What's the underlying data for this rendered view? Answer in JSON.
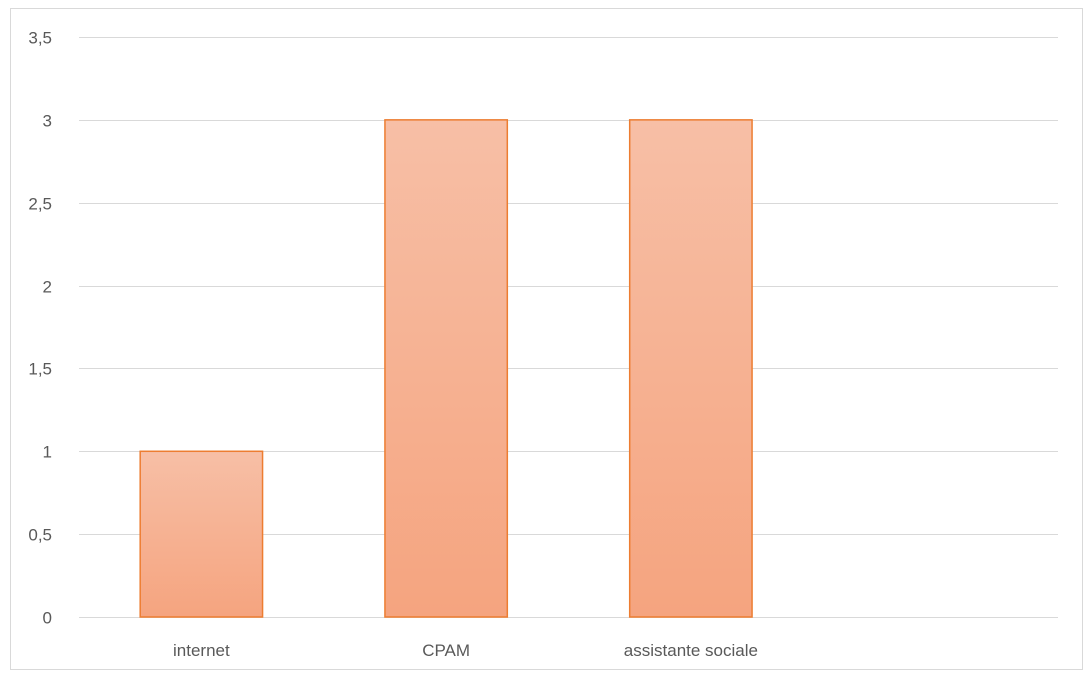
{
  "chart_data": {
    "type": "bar",
    "categories": [
      "internet",
      "CPAM",
      "assistante sociale",
      ""
    ],
    "values": [
      1,
      3,
      3,
      null
    ],
    "ylim": [
      0,
      3.5
    ],
    "yticks": [
      0,
      0.5,
      1,
      1.5,
      2,
      2.5,
      3,
      3.5
    ],
    "ytick_labels": [
      "0",
      "0,5",
      "1",
      "1,5",
      "2",
      "2,5",
      "3",
      "3,5"
    ],
    "grid": true,
    "legend": "none",
    "colors": {
      "bar_top": "#f7bfa6",
      "bar_bottom": "#f5a47f",
      "bar_border": "#ed7d31",
      "grid": "#d9d9d9",
      "text": "#595959"
    }
  }
}
